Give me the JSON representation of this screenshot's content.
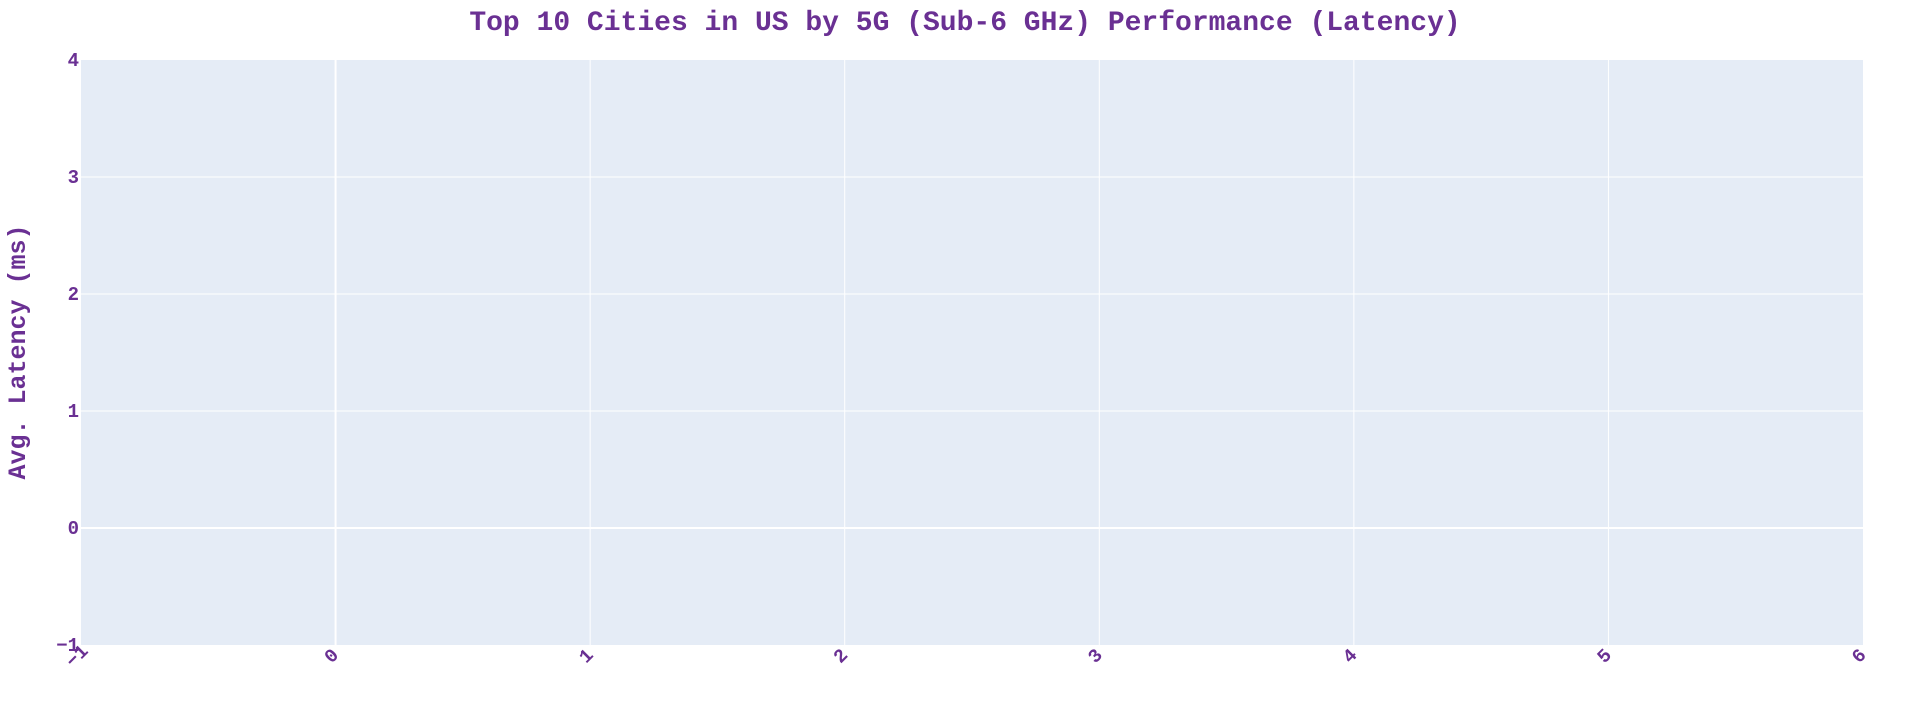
{
  "chart_data": {
    "type": "bar",
    "title": "Top 10 Cities in US by 5G (Sub-6 GHz) Performance (Latency)",
    "xlabel": "",
    "ylabel": "Avg. Latency (ms)",
    "categories": [],
    "values": [],
    "xlim": [
      -1,
      6
    ],
    "ylim": [
      -1,
      4
    ],
    "x_ticks": [
      -1,
      0,
      1,
      2,
      3,
      4,
      5,
      6
    ],
    "y_ticks": [
      -1,
      0,
      1,
      2,
      3,
      4
    ],
    "x_tick_angle": -45,
    "grid": true,
    "legend": "none"
  },
  "colors": {
    "text": "#6a3093",
    "plot_background": "#e5ecf6",
    "grid": "#ffffff"
  }
}
